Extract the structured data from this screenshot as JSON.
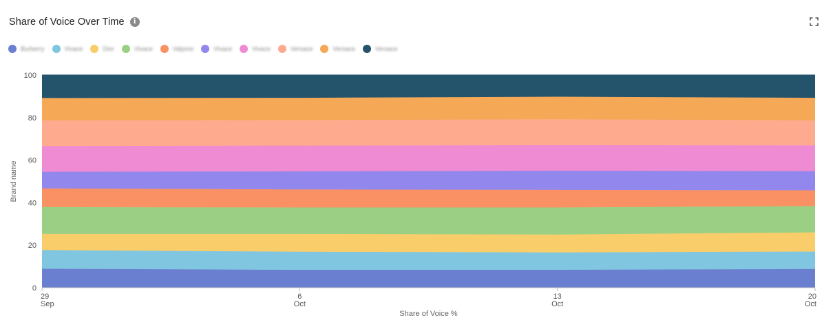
{
  "header": {
    "title": "Share of Voice Over Time",
    "info_icon": "info-icon",
    "expand_icon": "expand-icon"
  },
  "legend": [
    {
      "label": "Burberry",
      "color": "#6a7fcf"
    },
    {
      "label": "Vivace",
      "color": "#80c6e1"
    },
    {
      "label": "Dior",
      "color": "#f9cd6a"
    },
    {
      "label": "Vivace",
      "color": "#9bd084"
    },
    {
      "label": "Valpore",
      "color": "#f99164"
    },
    {
      "label": "Vivace",
      "color": "#9287ec"
    },
    {
      "label": "Vivace",
      "color": "#ef8bd2"
    },
    {
      "label": "Versace",
      "color": "#feaa8e"
    },
    {
      "label": "Versace",
      "color": "#f5a856"
    },
    {
      "label": "Versace",
      "color": "#24536c"
    }
  ],
  "chart_data": {
    "type": "area",
    "stacked": true,
    "xlabel": "Share of Voice %",
    "ylabel": "Brand name",
    "ylim": [
      0,
      100
    ],
    "yticks": [
      0,
      20,
      40,
      60,
      80,
      100
    ],
    "x": [
      "29 Sep",
      "6 Oct",
      "13 Oct",
      "20 Oct"
    ],
    "xtick_labels": [
      {
        "day": "29",
        "month": "Sep"
      },
      {
        "day": "6",
        "month": "Oct"
      },
      {
        "day": "13",
        "month": "Oct"
      },
      {
        "day": "20",
        "month": "Oct"
      }
    ],
    "grid": true,
    "series": [
      {
        "name": "Burberry",
        "values": [
          8.9,
          8.4,
          8.4,
          8.8
        ]
      },
      {
        "name": "Vivace",
        "values": [
          8.8,
          8.5,
          8.2,
          8.2
        ]
      },
      {
        "name": "Dior",
        "values": [
          7.6,
          8.4,
          8.4,
          9.0
        ]
      },
      {
        "name": "Vivace",
        "values": [
          12.6,
          12.4,
          12.7,
          12.4
        ]
      },
      {
        "name": "Valpore",
        "values": [
          8.8,
          8.5,
          8.3,
          7.4
        ]
      },
      {
        "name": "Vivace",
        "values": [
          7.8,
          8.5,
          9.0,
          9.0
        ]
      },
      {
        "name": "Vivace",
        "values": [
          12.1,
          12.1,
          12.0,
          12.1
        ]
      },
      {
        "name": "Versace",
        "values": [
          12.1,
          12.0,
          12.2,
          11.8
        ]
      },
      {
        "name": "Versace",
        "values": [
          10.5,
          10.5,
          10.6,
          10.6
        ]
      },
      {
        "name": "Versace",
        "values": [
          10.8,
          10.7,
          10.2,
          10.7
        ]
      }
    ]
  }
}
